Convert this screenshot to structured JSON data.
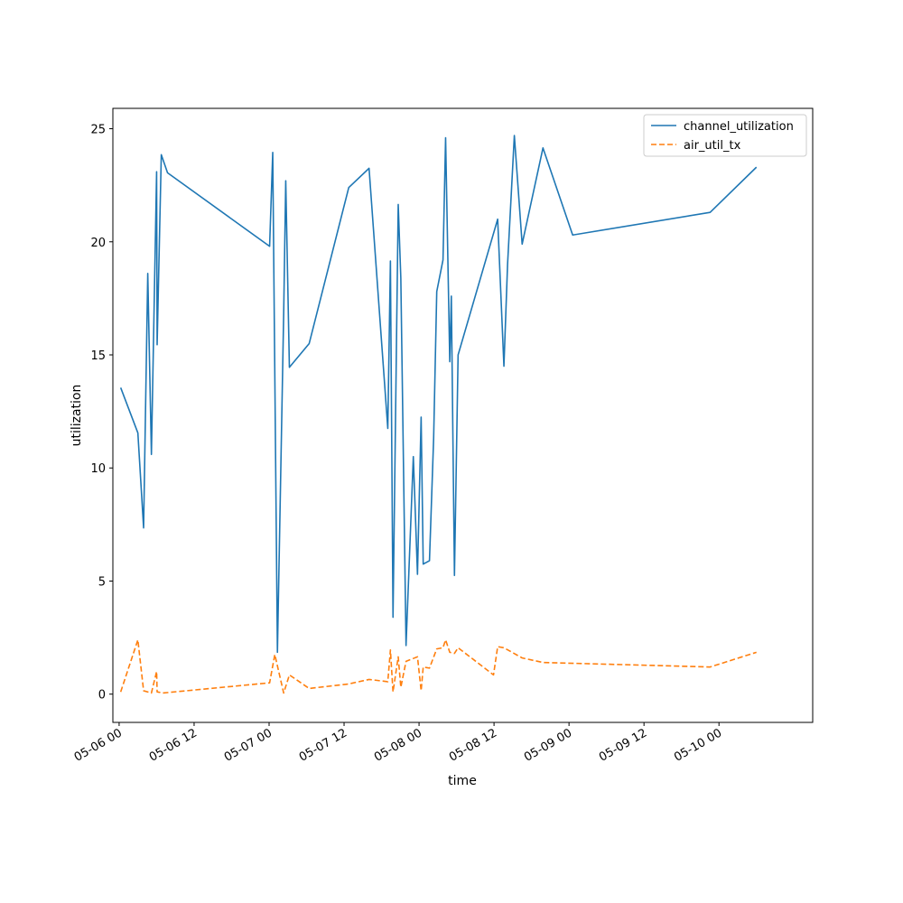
{
  "chart_data": {
    "type": "line",
    "title": "",
    "xlabel": "time",
    "ylabel": "utilization",
    "xlim": [
      "2025-05-05T23:00",
      "2025-05-10T15:00"
    ],
    "ylim": [
      -1.25,
      25.9
    ],
    "yticks": [
      0,
      5,
      10,
      15,
      20,
      25
    ],
    "xticks": [
      {
        "value": "2025-05-06T00:00",
        "label": "05-06 00"
      },
      {
        "value": "2025-05-06T12:00",
        "label": "05-06 12"
      },
      {
        "value": "2025-05-07T00:00",
        "label": "05-07 00"
      },
      {
        "value": "2025-05-07T12:00",
        "label": "05-07 12"
      },
      {
        "value": "2025-05-08T00:00",
        "label": "05-08 00"
      },
      {
        "value": "2025-05-08T12:00",
        "label": "05-08 12"
      },
      {
        "value": "2025-05-09T00:00",
        "label": "05-09 00"
      },
      {
        "value": "2025-05-09T12:00",
        "label": "05-09 12"
      },
      {
        "value": "2025-05-10T00:00",
        "label": "05-10 00"
      }
    ],
    "grid": false,
    "legend_position": "top-right",
    "series": [
      {
        "name": "channel_utilization",
        "color": "#1f77b4",
        "dash": "solid",
        "points": [
          [
            "2025-05-06T00:15",
            13.55
          ],
          [
            "2025-05-06T03:00",
            11.55
          ],
          [
            "2025-05-06T03:55",
            7.35
          ],
          [
            "2025-05-06T04:35",
            18.6
          ],
          [
            "2025-05-06T05:10",
            10.6
          ],
          [
            "2025-05-06T06:00",
            23.1
          ],
          [
            "2025-05-06T06:05",
            15.45
          ],
          [
            "2025-05-06T06:45",
            23.85
          ],
          [
            "2025-05-06T07:45",
            23.05
          ],
          [
            "2025-05-07T00:05",
            19.8
          ],
          [
            "2025-05-07T00:35",
            23.95
          ],
          [
            "2025-05-07T01:20",
            1.85
          ],
          [
            "2025-05-07T02:20",
            16.8
          ],
          [
            "2025-05-07T02:40",
            22.7
          ],
          [
            "2025-05-07T03:15",
            14.45
          ],
          [
            "2025-05-07T06:25",
            15.5
          ],
          [
            "2025-05-07T12:45",
            22.4
          ],
          [
            "2025-05-07T16:00",
            23.25
          ],
          [
            "2025-05-07T19:00",
            11.75
          ],
          [
            "2025-05-07T19:25",
            19.15
          ],
          [
            "2025-05-07T19:50",
            3.4
          ],
          [
            "2025-05-07T20:40",
            21.65
          ],
          [
            "2025-05-07T21:05",
            18.4
          ],
          [
            "2025-05-07T21:55",
            2.15
          ],
          [
            "2025-05-07T23:05",
            10.5
          ],
          [
            "2025-05-07T23:45",
            5.3
          ],
          [
            "2025-05-08T00:20",
            12.25
          ],
          [
            "2025-05-08T00:40",
            5.75
          ],
          [
            "2025-05-08T01:40",
            5.9
          ],
          [
            "2025-05-08T02:20",
            11.3
          ],
          [
            "2025-05-08T02:50",
            17.8
          ],
          [
            "2025-05-08T03:50",
            19.2
          ],
          [
            "2025-05-08T04:15",
            24.6
          ],
          [
            "2025-05-08T04:55",
            14.7
          ],
          [
            "2025-05-08T05:10",
            17.6
          ],
          [
            "2025-05-08T05:40",
            5.25
          ],
          [
            "2025-05-08T06:15",
            15.0
          ],
          [
            "2025-05-08T12:35",
            21.0
          ],
          [
            "2025-05-08T13:35",
            14.5
          ],
          [
            "2025-05-08T14:10",
            19.0
          ],
          [
            "2025-05-08T15:15",
            24.7
          ],
          [
            "2025-05-08T16:30",
            19.9
          ],
          [
            "2025-05-08T19:50",
            24.15
          ],
          [
            "2025-05-09T00:35",
            20.3
          ],
          [
            "2025-05-09T22:35",
            21.3
          ],
          [
            "2025-05-10T06:00",
            23.3
          ]
        ]
      },
      {
        "name": "air_util_tx",
        "color": "#ff7f0e",
        "dash": "dashed",
        "points": [
          [
            "2025-05-06T00:15",
            0.1
          ],
          [
            "2025-05-06T03:00",
            2.4
          ],
          [
            "2025-05-06T03:55",
            0.15
          ],
          [
            "2025-05-06T05:10",
            0.05
          ],
          [
            "2025-05-06T06:00",
            1.0
          ],
          [
            "2025-05-06T06:05",
            0.1
          ],
          [
            "2025-05-06T07:00",
            0.05
          ],
          [
            "2025-05-07T00:05",
            0.5
          ],
          [
            "2025-05-07T00:55",
            1.75
          ],
          [
            "2025-05-07T02:20",
            0.05
          ],
          [
            "2025-05-07T03:15",
            0.85
          ],
          [
            "2025-05-07T06:25",
            0.25
          ],
          [
            "2025-05-07T12:45",
            0.45
          ],
          [
            "2025-05-07T16:00",
            0.65
          ],
          [
            "2025-05-07T19:00",
            0.55
          ],
          [
            "2025-05-07T19:25",
            1.95
          ],
          [
            "2025-05-07T19:50",
            0.1
          ],
          [
            "2025-05-07T20:40",
            1.65
          ],
          [
            "2025-05-07T21:05",
            0.3
          ],
          [
            "2025-05-07T21:55",
            1.45
          ],
          [
            "2025-05-07T23:45",
            1.65
          ],
          [
            "2025-05-08T00:20",
            0.15
          ],
          [
            "2025-05-08T00:40",
            1.2
          ],
          [
            "2025-05-08T01:40",
            1.15
          ],
          [
            "2025-05-08T02:50",
            2.0
          ],
          [
            "2025-05-08T03:50",
            2.05
          ],
          [
            "2025-05-08T04:15",
            2.4
          ],
          [
            "2025-05-08T04:55",
            1.85
          ],
          [
            "2025-05-08T05:40",
            1.8
          ],
          [
            "2025-05-08T06:15",
            2.05
          ],
          [
            "2025-05-08T11:55",
            0.85
          ],
          [
            "2025-05-08T12:35",
            2.1
          ],
          [
            "2025-05-08T13:35",
            2.05
          ],
          [
            "2025-05-08T16:30",
            1.6
          ],
          [
            "2025-05-08T19:50",
            1.4
          ],
          [
            "2025-05-09T22:35",
            1.2
          ],
          [
            "2025-05-10T06:00",
            1.85
          ]
        ]
      }
    ]
  }
}
